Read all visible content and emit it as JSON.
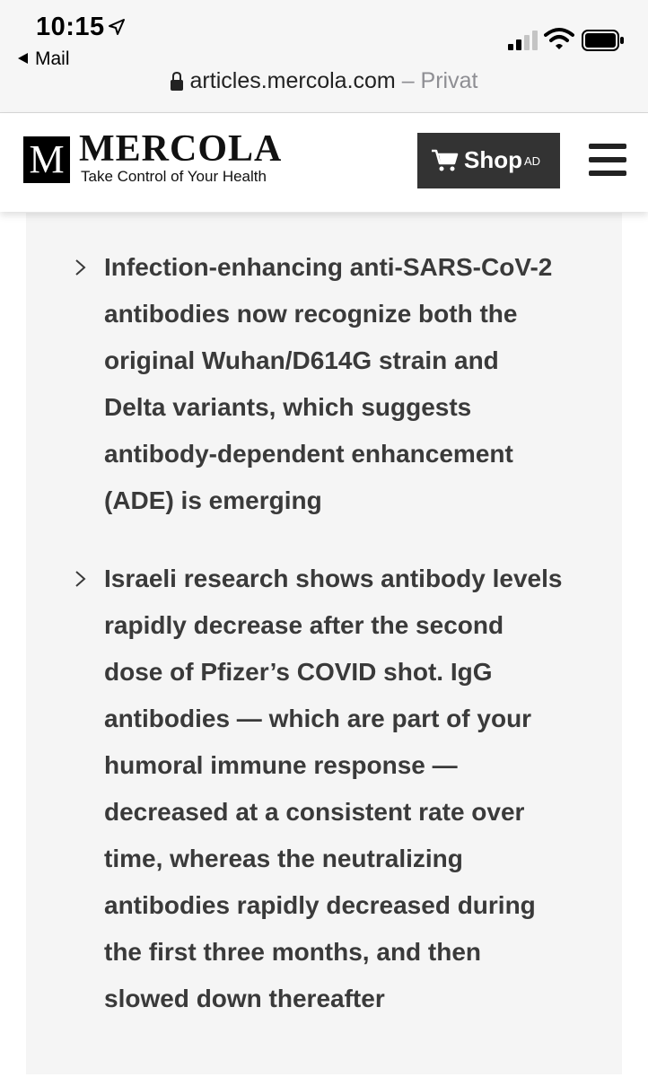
{
  "status_bar": {
    "time": "10:15",
    "back_label": "Mail",
    "url": "articles.mercola.com",
    "privacy_label": " – Privat"
  },
  "header": {
    "logo_letter": "M",
    "logo_name": "MERCOLA",
    "tagline": "Take Control of Your Health",
    "shop_label": "Shop",
    "ad_label": "AD"
  },
  "summary": {
    "items": [
      {
        "lines": [
          "Infection-enhancing anti-SARS-CoV-2",
          "antibodies now recognize both the",
          "original Wuhan/D614G strain and",
          "Delta variants, which suggests",
          "antibody-dependent enhancement",
          "(ADE) is emerging"
        ]
      },
      {
        "lines": [
          "Israeli research shows antibody levels",
          "rapidly decrease after the second",
          "dose of Pfizer’s COVID shot. IgG",
          "antibodies — which are part of your",
          "humoral immune response —",
          "decreased at a consistent rate over",
          "time, whereas the neutralizing",
          "antibodies rapidly decreased during",
          "the first three months, and then",
          "slowed down thereafter"
        ]
      }
    ]
  },
  "colors": {
    "summary_bg": "#f5f5f5",
    "text": "#3a3a3a",
    "shop_button": "#333333"
  }
}
